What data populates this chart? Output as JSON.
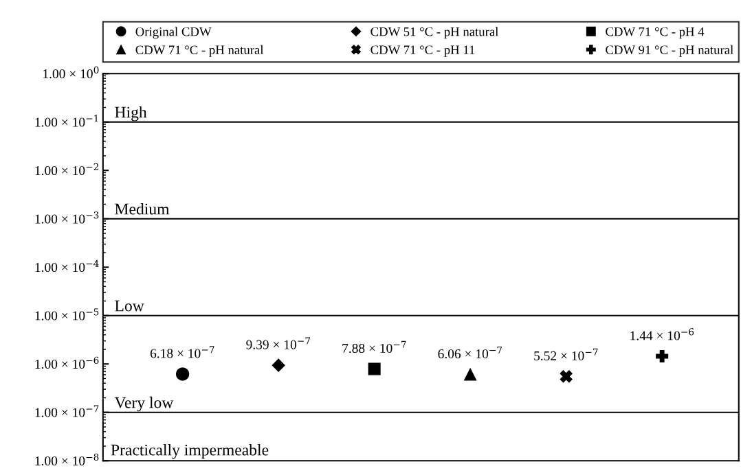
{
  "chart_data": {
    "type": "scatter",
    "categories": [
      null,
      null,
      null,
      null,
      null,
      null
    ],
    "series": [
      {
        "name": "Original CDW",
        "color": "#000000",
        "marker": "circle",
        "values": [
          6.18e-07,
          null,
          null,
          null,
          null,
          null
        ],
        "value_labels": [
          "6.18 × 10$^{−7}$",
          null,
          null,
          null,
          null,
          null
        ]
      },
      {
        "name": "CDW 51 °C - pH natural",
        "color": "#000000",
        "marker": "diamond",
        "values": [
          null,
          9.39e-07,
          null,
          null,
          null,
          null
        ],
        "value_labels": [
          null,
          "9.39 × 10$^{−7}$",
          null,
          null,
          null,
          null
        ]
      },
      {
        "name": "CDW 71 °C - pH 4",
        "color": "#000000",
        "marker": "square",
        "values": [
          null,
          null,
          7.88e-07,
          null,
          null,
          null
        ],
        "value_labels": [
          null,
          null,
          "7.88 × 10$^{−7}$",
          null,
          null,
          null
        ]
      },
      {
        "name": "CDW 71 °C - pH natural",
        "color": "#000000",
        "marker": "triangle",
        "values": [
          null,
          null,
          null,
          6.06e-07,
          null,
          null
        ],
        "value_labels": [
          null,
          null,
          null,
          "6.06 × 10$^{−7}$",
          null,
          null
        ]
      },
      {
        "name": "CDW 71 °C - pH 11",
        "color": "#000000",
        "marker": "cross",
        "values": [
          null,
          null,
          null,
          null,
          5.52e-07,
          null
        ],
        "value_labels": [
          null,
          null,
          null,
          null,
          "5.52 × 10$^{−7}$",
          null
        ]
      },
      {
        "name": "CDW 91 °C - pH natural",
        "color": "#000000",
        "marker": "plus",
        "values": [
          null,
          null,
          null,
          null,
          null,
          1.44e-06
        ],
        "value_labels": [
          null,
          null,
          null,
          null,
          null,
          "1.44 × 10$^{−6}$"
        ]
      }
    ],
    "log": "y",
    "ylim": [
      1e-08,
      1
    ],
    "yticks": [
      {
        "value": 1,
        "label": "1.00 × 10$^{0}$"
      },
      {
        "value": 0.1,
        "label": "1.00 × 10$^{−1}$"
      },
      {
        "value": 0.01,
        "label": "1.00 × 10$^{−2}$"
      },
      {
        "value": 0.001,
        "label": "1.00 × 10$^{−3}$"
      },
      {
        "value": 0.0001,
        "label": "1.00 × 10$^{−4}$"
      },
      {
        "value": 1e-05,
        "label": "1.00 × 10$^{−5}$"
      },
      {
        "value": 1e-06,
        "label": "1.00 × 10$^{−6}$"
      },
      {
        "value": 1e-07,
        "label": "1.00 × 10$^{−7}$"
      },
      {
        "value": 1e-08,
        "label": "1.00 × 10$^{−8}$"
      }
    ],
    "tick_labels": "y",
    "ref_lines": [
      {
        "axis": "y",
        "value": 0.1,
        "label": "High",
        "color": "#000000"
      },
      {
        "axis": "y",
        "value": 0.001,
        "label": "Medium",
        "color": "#000000"
      },
      {
        "axis": "y",
        "value": 1e-05,
        "label": "Low",
        "color": "#000000"
      },
      {
        "axis": "y",
        "value": 1e-07,
        "label": "Very low",
        "color": "#000000"
      }
    ],
    "annotations": [
      "Practically impermeable"
    ],
    "grid": false,
    "legend": "top"
  }
}
